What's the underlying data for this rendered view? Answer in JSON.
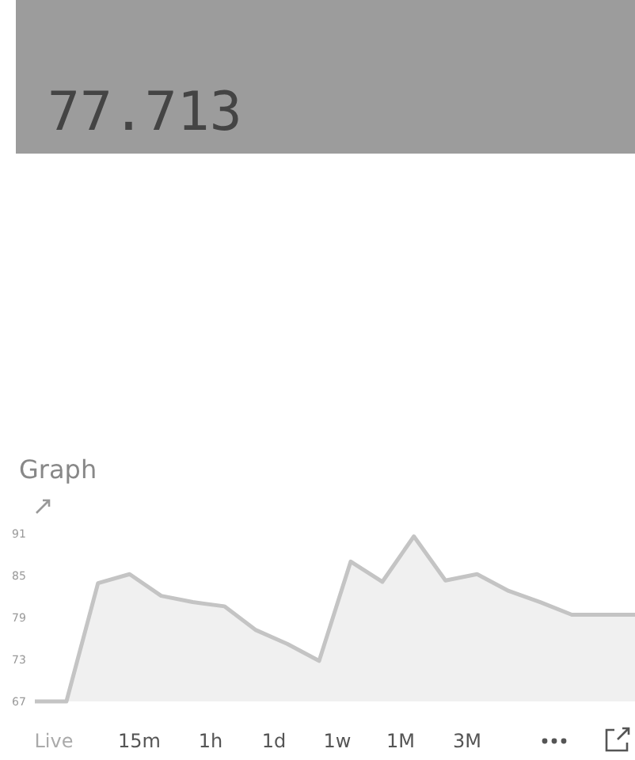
{
  "chart_data": {
    "type": "area",
    "title": "Graph",
    "categories": [
      null,
      null,
      null,
      null,
      null,
      null,
      null,
      null,
      null,
      null,
      null,
      null,
      null,
      null,
      null,
      null,
      null,
      null,
      null,
      null
    ],
    "values": [
      67,
      67,
      83.9,
      85.2,
      82.1,
      81.2,
      80.6,
      77.2,
      75.2,
      72.8,
      87.0,
      84.1,
      90.6,
      84.3,
      85.2,
      82.8,
      81.2,
      79.4,
      79.4,
      79.4
    ],
    "color": "#c4c4c4",
    "ylim": [
      67,
      91
    ],
    "yticks": [
      67,
      73,
      79,
      85,
      91
    ],
    "annotations": [
      "77.713",
      "Live",
      "15m",
      "1h",
      "1d",
      "1w",
      "1M",
      "3M"
    ]
  }
}
